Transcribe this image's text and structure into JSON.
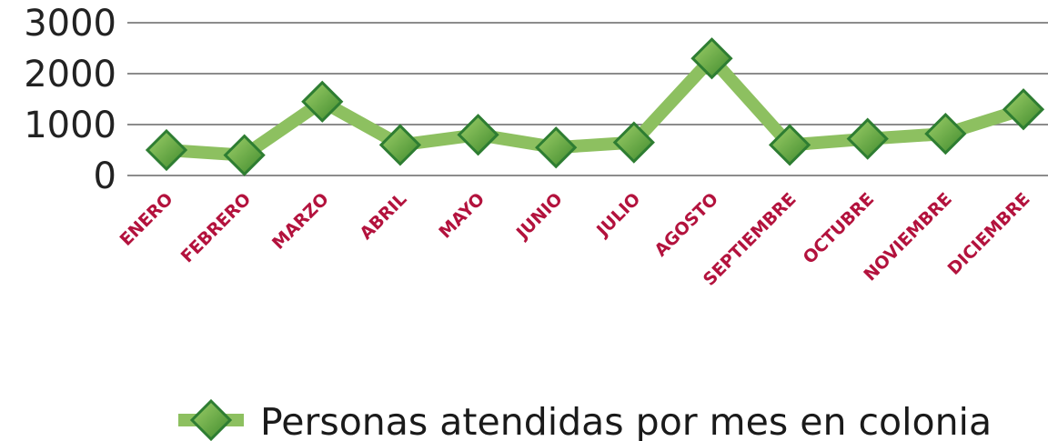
{
  "chart_data": {
    "type": "line",
    "categories": [
      "ENERO",
      "FEBRERO",
      "MARZO",
      "ABRIL",
      "MAYO",
      "JUNIO",
      "JULIO",
      "AGOSTO",
      "SEPTIEMBRE",
      "OCTUBRE",
      "NOVIEMBRE",
      "DICIEMBRE"
    ],
    "series": [
      {
        "name": "Personas atendidas por mes en colonia",
        "values": [
          500,
          400,
          1450,
          600,
          800,
          550,
          650,
          2300,
          600,
          720,
          820,
          1300
        ]
      }
    ],
    "yticks": [
      "0",
      "1000",
      "2000",
      "3000"
    ],
    "ylim": [
      0,
      3000
    ],
    "grid": true,
    "legend_position": "bottom",
    "colors": {
      "line": "#8dc060",
      "marker_fill_light": "#9fd06a",
      "marker_fill_dark": "#3f8a2c",
      "marker_stroke": "#2e7d32",
      "category_label": "#b3123d",
      "gridline": "#8c8c8c"
    }
  }
}
